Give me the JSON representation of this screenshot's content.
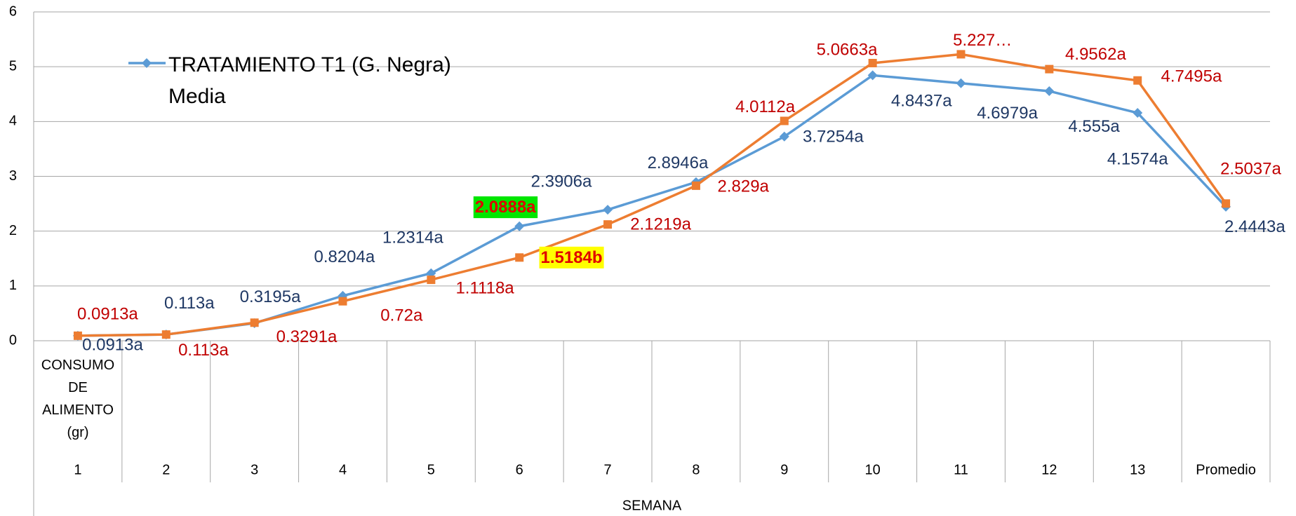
{
  "chart_data": {
    "type": "line",
    "categories": [
      "1",
      "2",
      "3",
      "4",
      "5",
      "6",
      "7",
      "8",
      "9",
      "10",
      "11",
      "12",
      "13",
      "Promedio"
    ],
    "category_header": "CONSUMO DE ALIMENTO (gr)",
    "x_label": "SEMANA",
    "ylim": [
      0,
      6
    ],
    "yticks": [
      0,
      1,
      2,
      3,
      4,
      5,
      6
    ],
    "grid": true,
    "legend": "upper left",
    "series": [
      {
        "name": "TRATAMIENTO T1 (G. Negra) Media",
        "color": "#5b9bd5",
        "marker": "diamond",
        "label_color": "#1f3864",
        "values": [
          0.0913,
          0.113,
          0.3195,
          0.8204,
          1.2314,
          2.0888,
          2.3906,
          2.8946,
          3.7254,
          4.8437,
          4.6979,
          4.555,
          4.1574,
          2.4443
        ],
        "value_labels": [
          "0.0913a",
          "0.113a",
          "0.3195a",
          "0.8204a",
          "1.2314a",
          "2.0888a",
          "2.3906a",
          "2.8946a",
          "3.7254a",
          "4.8437a",
          "4.6979a",
          "4.555a",
          "4.1574a",
          "2.4443a"
        ],
        "label_background": [
          null,
          null,
          null,
          null,
          null,
          "#00e600",
          null,
          null,
          null,
          null,
          null,
          null,
          null,
          null
        ],
        "label_highlight_color": "#e00000"
      },
      {
        "color": "#ed7d31",
        "marker": "square",
        "label_color": "#c00000",
        "values": [
          0.0913,
          0.113,
          0.3291,
          0.72,
          1.1118,
          1.5184,
          2.1219,
          2.829,
          4.0112,
          5.0663,
          5.227,
          4.9562,
          4.7495,
          2.5037
        ],
        "value_labels": [
          "0.0913a",
          "0.113a",
          "0.3291a",
          "0.72a",
          "1.1118a",
          "1.5184b",
          "2.1219a",
          "2.829a",
          "4.0112a",
          "5.0663a",
          "5.227…",
          "4.9562a",
          "4.7495a",
          "2.5037a"
        ],
        "label_background": [
          null,
          null,
          null,
          null,
          null,
          "#ffff00",
          null,
          null,
          null,
          null,
          null,
          null,
          null,
          null
        ],
        "label_highlight_color": "#e00000"
      }
    ]
  }
}
